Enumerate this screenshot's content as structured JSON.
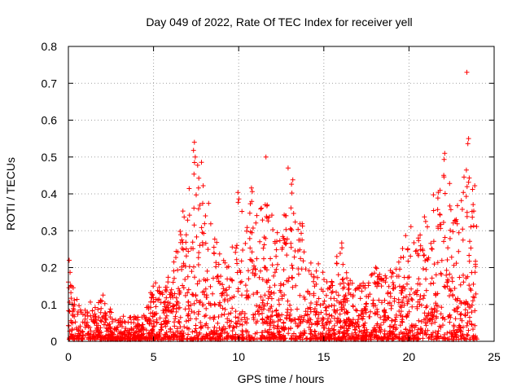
{
  "chart_data": {
    "type": "scatter",
    "title": "Day 049 of 2022, Rate Of TEC Index for receiver yell",
    "xlabel": "GPS time / hours",
    "ylabel": "ROTI / TECUs",
    "xlim": [
      0,
      25
    ],
    "ylim": [
      0,
      0.8
    ],
    "x_ticks": [
      "0",
      "5",
      "10",
      "15",
      "20",
      "25"
    ],
    "y_ticks": [
      "0",
      "0.1",
      "0.2",
      "0.3",
      "0.4",
      "0.5",
      "0.6",
      "0.7",
      "0.8"
    ],
    "grid": true,
    "marker": "+",
    "color": "#ff0000",
    "series": [
      {
        "name": "ROTI",
        "envelope": {
          "description": "approximate upper extent of the dense scatter cloud, in data units",
          "x": [
            0,
            0.5,
            1,
            1.5,
            2,
            2.5,
            3,
            3.5,
            4,
            4.5,
            5,
            5.5,
            6,
            6.5,
            7,
            7.5,
            8,
            8.5,
            9,
            9.5,
            10,
            10.5,
            11,
            11.5,
            12,
            12.5,
            13,
            13.5,
            14,
            14.5,
            15,
            15.5,
            16,
            16.5,
            17,
            17.5,
            18,
            18.5,
            19,
            19.5,
            20,
            20.5,
            21,
            21.5,
            22,
            22.5,
            23,
            23.5,
            24
          ],
          "y": [
            0.2,
            0.12,
            0.11,
            0.1,
            0.13,
            0.08,
            0.06,
            0.07,
            0.06,
            0.07,
            0.16,
            0.15,
            0.18,
            0.3,
            0.5,
            0.53,
            0.48,
            0.3,
            0.22,
            0.2,
            0.43,
            0.37,
            0.47,
            0.42,
            0.33,
            0.3,
            0.47,
            0.37,
            0.25,
            0.2,
            0.22,
            0.19,
            0.28,
            0.16,
            0.18,
            0.14,
            0.2,
            0.17,
            0.22,
            0.22,
            0.33,
            0.28,
            0.35,
            0.42,
            0.5,
            0.45,
            0.4,
            0.56,
            0.4
          ]
        },
        "outliers": [
          {
            "x": 23.4,
            "y": 0.73
          },
          {
            "x": 23.5,
            "y": 0.55
          },
          {
            "x": 7.4,
            "y": 0.54
          },
          {
            "x": 11.6,
            "y": 0.5
          },
          {
            "x": 22.1,
            "y": 0.51
          },
          {
            "x": 12.9,
            "y": 0.47
          },
          {
            "x": 0.05,
            "y": 0.22
          }
        ]
      }
    ]
  }
}
